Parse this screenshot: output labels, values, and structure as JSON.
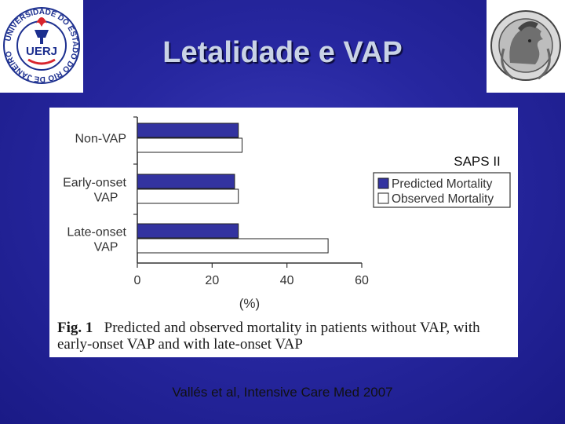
{
  "slide": {
    "title": "Letalidade e VAP",
    "citation": "Vallés et al, Intensive Care Med 2007",
    "background": "#2727a0"
  },
  "logo_left": {
    "icon": "uerj-seal-icon",
    "ring_text": "UNIVERSIDADE DO ESTADO DO RIO DE JANEIRO",
    "abbr": "UERJ",
    "color": "#1c2f8f"
  },
  "logo_right": {
    "icon": "minerva-seal-icon"
  },
  "chart_data": {
    "type": "bar",
    "orientation": "horizontal",
    "title": "",
    "annotation": "SAPS II",
    "categories": [
      "Non-VAP",
      "Early-onset VAP",
      "Late-onset VAP"
    ],
    "category_lines": [
      [
        "Non-VAP"
      ],
      [
        "Early-onset",
        "VAP"
      ],
      [
        "Late-onset",
        "VAP"
      ]
    ],
    "series": [
      {
        "name": "Predicted Mortality",
        "values": [
          27,
          26,
          27
        ],
        "color": "#3333a0"
      },
      {
        "name": "Observed Mortality",
        "values": [
          28,
          27,
          51
        ],
        "color": "#ffffff"
      }
    ],
    "xlabel": "(%)",
    "ylabel": "",
    "xlim": [
      0,
      60
    ],
    "xticks": [
      "0",
      "20",
      "40",
      "60"
    ],
    "grid": false,
    "legend": "right",
    "caption_label": "Fig. 1",
    "caption_text": "Predicted and observed mortality in patients without VAP, with early-onset VAP and with late-onset VAP"
  }
}
